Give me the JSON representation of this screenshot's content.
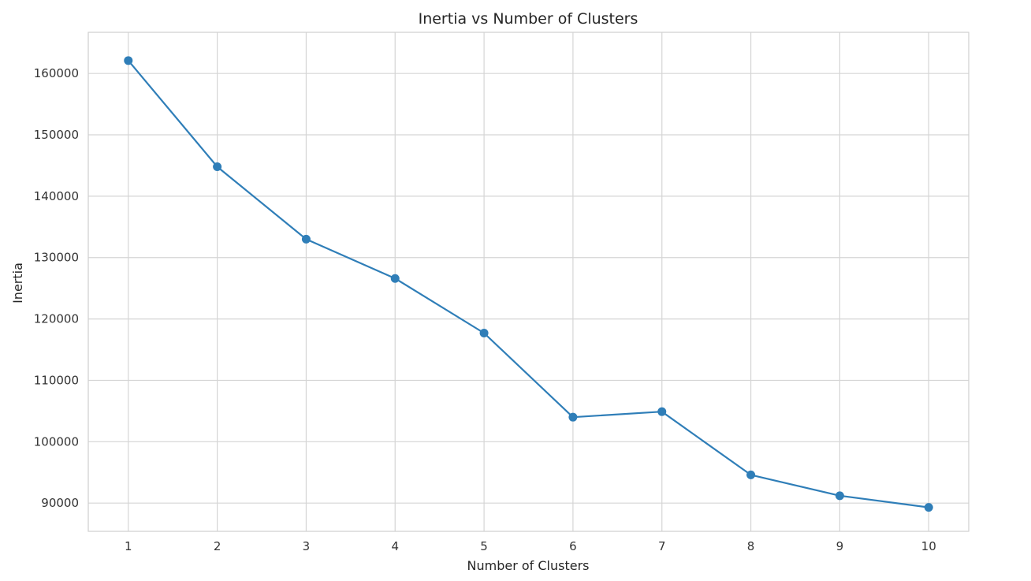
{
  "chart_data": {
    "type": "line",
    "title": "Inertia vs Number of Clusters",
    "xlabel": "Number of Clusters",
    "ylabel": "Inertia",
    "x": [
      1,
      2,
      3,
      4,
      5,
      6,
      7,
      8,
      9,
      10
    ],
    "x_ticks": [
      "1",
      "2",
      "3",
      "4",
      "5",
      "6",
      "7",
      "8",
      "9",
      "10"
    ],
    "y_ticks": [
      "90000",
      "100000",
      "110000",
      "120000",
      "130000",
      "140000",
      "150000",
      "160000"
    ],
    "y_tick_values": [
      90000,
      100000,
      110000,
      120000,
      130000,
      140000,
      150000,
      160000
    ],
    "series": [
      {
        "values": [
          162100,
          144800,
          133000,
          126600,
          117700,
          104000,
          104900,
          94600,
          91200,
          89300
        ],
        "color": "#2f7eb8",
        "marker": "circle"
      }
    ],
    "xlim": [
      0.55,
      10.45
    ],
    "ylim": [
      85400,
      166700
    ],
    "grid": true,
    "legend": "none"
  }
}
